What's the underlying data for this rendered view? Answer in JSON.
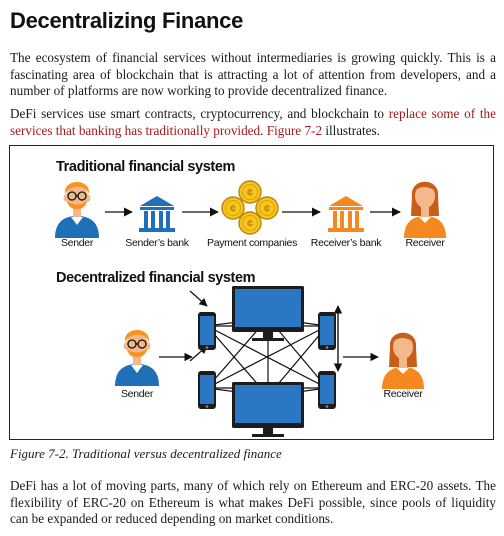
{
  "heading": "Decentralizing Finance",
  "paragraph1": "The ecosystem of financial services without intermediaries is growing quickly. This is a fascinating area of blockchain that is attracting a lot of attention from developers, and a number of platforms are now working to provide decentralized finance.",
  "paragraph2": {
    "before": "DeFi services use smart contracts, cryptocurrency, and blockchain to ",
    "link1": "replace some of the services that banking has traditionally provided",
    "middle": ". ",
    "link2": "Figure 7-2",
    "after": " illustrates."
  },
  "figure": {
    "traditional_title": "Traditional financial system",
    "decentralized_title": "Decentralized  financial system",
    "labels": {
      "sender": "Sender",
      "senders_bank": "Sender’s bank",
      "payment_companies": "Payment companies",
      "receivers_bank": "Receiver’s bank",
      "receiver": "Receiver",
      "sender2": "Sender",
      "receiver2": "Receiver"
    },
    "coin_symbol": "¢",
    "colors": {
      "blue": "#1f6fb9",
      "orange": "#f5891f",
      "gold": "#f7c51c",
      "skin": "#f3b98a"
    }
  },
  "caption": "Figure 7-2. Traditional versus decentralized finance",
  "paragraph3": "DeFi has a lot of moving parts, many of which rely on Ethereum and ERC-20 assets. The flexibility of ERC-20 on Ethereum is what makes DeFi possible, since pools of liquidity can be expanded or reduced depending on market conditions."
}
